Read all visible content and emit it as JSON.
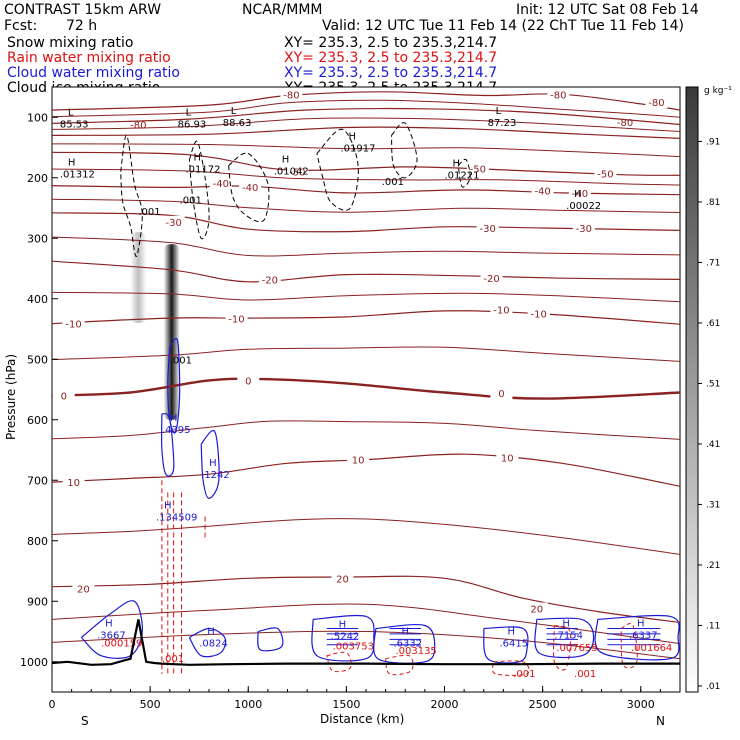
{
  "header": {
    "model": "CONTRAST 15km ARW",
    "org": "NCAR/MMM",
    "init": "Init: 12 UTC Sat 08 Feb 14",
    "fcst_label": "Fcst:",
    "fcst_value": "72 h",
    "valid": "Valid: 12 UTC Tue 11 Feb 14 (22 ChT Tue 11 Feb 14)"
  },
  "legend": [
    {
      "label": "Snow mixing ratio",
      "xy": "XY= 235.3,   2.5 to 235.3,214.7",
      "color": "#000000"
    },
    {
      "label": "Rain water mixing ratio",
      "xy": "XY= 235.3,   2.5 to 235.3,214.7",
      "color": "#dd1111"
    },
    {
      "label": "Cloud water mixing ratio",
      "xy": "XY= 235.3,   2.5 to 235.3,214.7",
      "color": "#1a1ad6"
    },
    {
      "label": "Cloud ice mixing ratio",
      "xy": "XY= 235.3,   2.5 to 235.3,214.7",
      "color": "#000000"
    }
  ],
  "colors": {
    "temperature": "#8b2222",
    "rain": "#dd1111",
    "cloud_water": "#1a1ad6",
    "terrain": "#000000",
    "ice": "#000000"
  },
  "chart_data": {
    "type": "contour",
    "xlabel": "Distance (km)",
    "ylabel": "Pressure (hPa)",
    "xlim": [
      0,
      3200
    ],
    "ylim": [
      1050,
      50
    ],
    "x_ticks": [
      0,
      500,
      1000,
      1500,
      2000,
      2500,
      3000
    ],
    "y_ticks": [
      100,
      200,
      300,
      400,
      500,
      600,
      700,
      800,
      900,
      1000
    ],
    "end_labels": {
      "left": "S",
      "right": "N"
    },
    "colorbar": {
      "unit": "g kg⁻¹",
      "ticks": [
        0.01,
        0.11,
        0.21,
        0.31,
        0.41,
        0.51,
        0.61,
        0.71,
        0.81,
        0.91
      ],
      "tick_labels": [
        ".01",
        ".11",
        ".21",
        ".31",
        ".41",
        ".51",
        ".61",
        ".71",
        ".81",
        ".91"
      ]
    },
    "temperature_contours": [
      {
        "value": -80,
        "label": "-80",
        "label_pos": [
          [
            1220,
            62
          ],
          [
            2580,
            62
          ],
          [
            3080,
            75
          ],
          [
            440,
            112
          ],
          [
            2920,
            108
          ]
        ],
        "points": [
          [
            0,
            88
          ],
          [
            800,
            80
          ],
          [
            1200,
            64
          ],
          [
            1700,
            58
          ],
          [
            2200,
            64
          ],
          [
            2600,
            62
          ],
          [
            3000,
            78
          ],
          [
            3200,
            88
          ]
        ]
      },
      {
        "value": -70,
        "label": "",
        "label_pos": [],
        "points": [
          [
            0,
            110
          ],
          [
            700,
            103
          ],
          [
            1300,
            88
          ],
          [
            1900,
            86
          ],
          [
            2500,
            93
          ],
          [
            3200,
            112
          ]
        ]
      },
      {
        "value": -60,
        "label": "",
        "label_pos": [],
        "points": [
          [
            0,
            130
          ],
          [
            800,
            128
          ],
          [
            1500,
            117
          ],
          [
            2100,
            119
          ],
          [
            2700,
            128
          ],
          [
            3200,
            135
          ]
        ]
      },
      {
        "value": -50,
        "label": "-50",
        "label_pos": [
          [
            1250,
            190
          ],
          [
            2170,
            185
          ],
          [
            2820,
            193
          ]
        ],
        "points": [
          [
            0,
            158
          ],
          [
            700,
            162
          ],
          [
            1200,
            187
          ],
          [
            1800,
            182
          ],
          [
            2300,
            187
          ],
          [
            2900,
            195
          ],
          [
            3200,
            196
          ]
        ]
      },
      {
        "value": -40,
        "label": "-40",
        "label_pos": [
          [
            860,
            209
          ],
          [
            1010,
            215
          ],
          [
            2500,
            221
          ],
          [
            2690,
            225
          ]
        ],
        "points": [
          [
            0,
            213
          ],
          [
            600,
            216
          ],
          [
            1000,
            214
          ],
          [
            1500,
            225
          ],
          [
            2100,
            220
          ],
          [
            2600,
            225
          ],
          [
            3200,
            228
          ]
        ]
      },
      {
        "value": -30,
        "label": "-30",
        "label_pos": [
          [
            620,
            273
          ],
          [
            2220,
            283
          ],
          [
            2710,
            283
          ]
        ],
        "points": [
          [
            0,
            258
          ],
          [
            600,
            262
          ],
          [
            1000,
            285
          ],
          [
            1500,
            289
          ],
          [
            2000,
            281
          ],
          [
            2500,
            283
          ],
          [
            3200,
            287
          ]
        ]
      },
      {
        "value": -20,
        "label": "-20",
        "label_pos": [
          [
            1110,
            368
          ],
          [
            2240,
            366
          ]
        ],
        "points": [
          [
            0,
            338
          ],
          [
            600,
            352
          ],
          [
            1000,
            372
          ],
          [
            1500,
            360
          ],
          [
            2100,
            362
          ],
          [
            2600,
            366
          ],
          [
            3200,
            368
          ]
        ]
      },
      {
        "value": -10,
        "label": "-10",
        "label_pos": [
          [
            110,
            441
          ],
          [
            940,
            433
          ],
          [
            2290,
            418
          ],
          [
            2480,
            424
          ]
        ],
        "points": [
          [
            0,
            441
          ],
          [
            600,
            432
          ],
          [
            1000,
            432
          ],
          [
            1500,
            430
          ],
          [
            2000,
            420
          ],
          [
            2500,
            425
          ],
          [
            3200,
            442
          ]
        ]
      },
      {
        "value": 0,
        "label": "0",
        "label_pos": [
          [
            60,
            560
          ],
          [
            1000,
            535
          ],
          [
            2290,
            556
          ]
        ],
        "points": [
          [
            0,
            560
          ],
          [
            400,
            555
          ],
          [
            800,
            535
          ],
          [
            1100,
            533
          ],
          [
            1500,
            540
          ],
          [
            2000,
            555
          ],
          [
            2500,
            565
          ],
          [
            3200,
            555
          ]
        ],
        "bold": true
      },
      {
        "value": 10,
        "label": "10",
        "label_pos": [
          [
            110,
            703
          ],
          [
            1560,
            666
          ],
          [
            2320,
            662
          ]
        ],
        "points": [
          [
            0,
            703
          ],
          [
            400,
            697
          ],
          [
            800,
            690
          ],
          [
            1200,
            672
          ],
          [
            1600,
            666
          ],
          [
            2100,
            657
          ],
          [
            2600,
            672
          ],
          [
            3200,
            710
          ]
        ]
      },
      {
        "value": 20,
        "label": "20",
        "label_pos": [
          [
            160,
            879
          ],
          [
            1480,
            862
          ],
          [
            2470,
            912
          ]
        ],
        "points": [
          [
            0,
            876
          ],
          [
            500,
            872
          ],
          [
            1000,
            862
          ],
          [
            1500,
            860
          ],
          [
            2000,
            862
          ],
          [
            2400,
            895
          ],
          [
            2800,
            918
          ],
          [
            3200,
            935
          ]
        ]
      }
    ],
    "pressure_markers": [
      {
        "kind": "L",
        "value": "85.53",
        "x": 40,
        "p": 110
      },
      {
        "kind": "L",
        "value": "86.93",
        "x": 640,
        "p": 110
      },
      {
        "kind": "L",
        "value": "88.63",
        "x": 870,
        "p": 108
      },
      {
        "kind": "L",
        "value": "87.23",
        "x": 2220,
        "p": 108
      },
      {
        "kind": "H",
        "value": ".01312",
        "x": 40,
        "p": 193
      },
      {
        "kind": "H",
        "value": ".01172",
        "x": 680,
        "p": 185
      },
      {
        "kind": "H",
        "value": ".01042",
        "x": 1130,
        "p": 188
      },
      {
        "kind": "H",
        "value": ".01917",
        "x": 1470,
        "p": 150
      },
      {
        "kind": "H",
        "value": ".01221",
        "x": 2000,
        "p": 195
      },
      {
        "kind": "H",
        "value": ".00022",
        "x": 2620,
        "p": 245
      },
      {
        "kind": "H",
        "value": ".4395",
        "x": 560,
        "p": 615
      },
      {
        "kind": "H",
        "value": ".1242",
        "x": 760,
        "p": 690
      },
      {
        "kind": "H",
        "value": ".134509",
        "x": 530,
        "p": 760
      },
      {
        "kind": "H",
        "value": ".3667",
        "x": 230,
        "p": 955
      },
      {
        "kind": "H",
        "value": ".0824",
        "x": 750,
        "p": 968
      },
      {
        "kind": "H",
        "value": ".5242",
        "x": 1420,
        "p": 957
      },
      {
        "kind": "H",
        "value": ".6332",
        "x": 1740,
        "p": 968
      },
      {
        "kind": "H",
        "value": ".6415",
        "x": 2280,
        "p": 968
      },
      {
        "kind": "H",
        "value": ".7154",
        "x": 2560,
        "p": 955
      },
      {
        "kind": "H",
        "value": ".6337",
        "x": 2940,
        "p": 955
      },
      {
        "kind": "label",
        "value": ".001",
        "x": 440,
        "p": 255
      },
      {
        "kind": "label",
        "value": ".001",
        "x": 650,
        "p": 236
      },
      {
        "kind": "label",
        "value": ".001",
        "x": 1680,
        "p": 205
      },
      {
        "kind": "label",
        "value": ".001",
        "x": 600,
        "p": 500
      }
    ],
    "rain_labels": [
      ".000159",
      ".001",
      ".003753",
      ".003135",
      ".007655",
      ".001664",
      ".001",
      ".001"
    ],
    "rain_label_pos": [
      [
        250,
        975
      ],
      [
        560,
        1000
      ],
      [
        1430,
        980
      ],
      [
        1750,
        987
      ],
      [
        2570,
        982
      ],
      [
        2950,
        982
      ],
      [
        2350,
        1025
      ],
      [
        2660,
        1025
      ]
    ],
    "terrain": {
      "x": [
        0,
        80,
        200,
        300,
        400,
        440,
        480,
        520,
        560,
        620,
        700,
        900,
        1200,
        1600,
        2000,
        2400,
        2800,
        3200
      ],
      "p": [
        1002,
        1000,
        1005,
        1004,
        995,
        930,
        1000,
        1002,
        1003,
        1004,
        1005,
        1004,
        1003,
        1003,
        1004,
        1004,
        1003,
        1003
      ]
    },
    "snow_shading": [
      {
        "x": 440,
        "p_top": 290,
        "p_bot": 440,
        "max": 0.25
      },
      {
        "x": 610,
        "p_top": 310,
        "p_bot": 600,
        "max": 0.9
      }
    ]
  }
}
